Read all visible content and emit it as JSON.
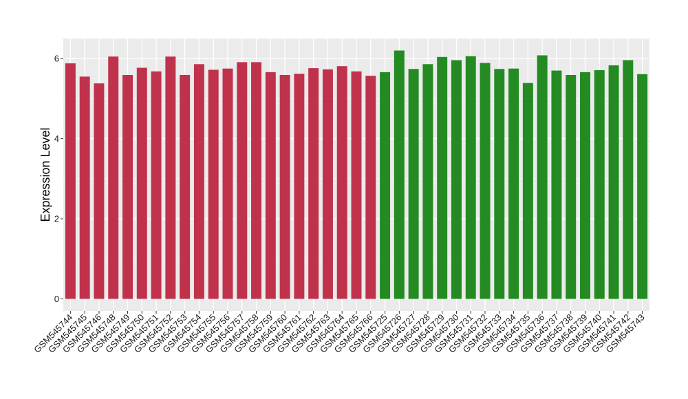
{
  "chart_data": {
    "type": "bar",
    "title": "",
    "xlabel": "",
    "ylabel": "Expression Level",
    "ylim": [
      -0.3,
      6.5
    ],
    "yticks": [
      0,
      2,
      4,
      6
    ],
    "grid": true,
    "legend": "none",
    "colors": {
      "panel_bg": "#ebebeb",
      "grid": "#ffffff",
      "group1": "#c0324b",
      "group2": "#238b22"
    },
    "categories": [
      "GSM545744",
      "GSM545745",
      "GSM545746",
      "GSM545748",
      "GSM545749",
      "GSM545750",
      "GSM545751",
      "GSM545752",
      "GSM545753",
      "GSM545754",
      "GSM545755",
      "GSM545756",
      "GSM545757",
      "GSM545758",
      "GSM545759",
      "GSM545760",
      "GSM545761",
      "GSM545762",
      "GSM545763",
      "GSM545764",
      "GSM545765",
      "GSM545766",
      "GSM545725",
      "GSM545726",
      "GSM545727",
      "GSM545728",
      "GSM545729",
      "GSM545730",
      "GSM545731",
      "GSM545732",
      "GSM545733",
      "GSM545734",
      "GSM545735",
      "GSM545736",
      "GSM545737",
      "GSM545738",
      "GSM545739",
      "GSM545740",
      "GSM545741",
      "GSM545742",
      "GSM545743"
    ],
    "values": [
      5.88,
      5.55,
      5.38,
      6.05,
      5.59,
      5.77,
      5.68,
      6.05,
      5.59,
      5.86,
      5.72,
      5.75,
      5.91,
      5.91,
      5.66,
      5.59,
      5.62,
      5.76,
      5.73,
      5.81,
      5.68,
      5.57,
      5.66,
      6.2,
      5.74,
      5.86,
      6.04,
      5.96,
      6.06,
      5.89,
      5.74,
      5.75,
      5.39,
      6.08,
      5.7,
      5.59,
      5.66,
      5.71,
      5.83,
      5.96,
      5.61
    ],
    "groups": [
      "group1",
      "group1",
      "group1",
      "group1",
      "group1",
      "group1",
      "group1",
      "group1",
      "group1",
      "group1",
      "group1",
      "group1",
      "group1",
      "group1",
      "group1",
      "group1",
      "group1",
      "group1",
      "group1",
      "group1",
      "group1",
      "group1",
      "group2",
      "group2",
      "group2",
      "group2",
      "group2",
      "group2",
      "group2",
      "group2",
      "group2",
      "group2",
      "group2",
      "group2",
      "group2",
      "group2",
      "group2",
      "group2",
      "group2",
      "group2",
      "group2"
    ]
  }
}
